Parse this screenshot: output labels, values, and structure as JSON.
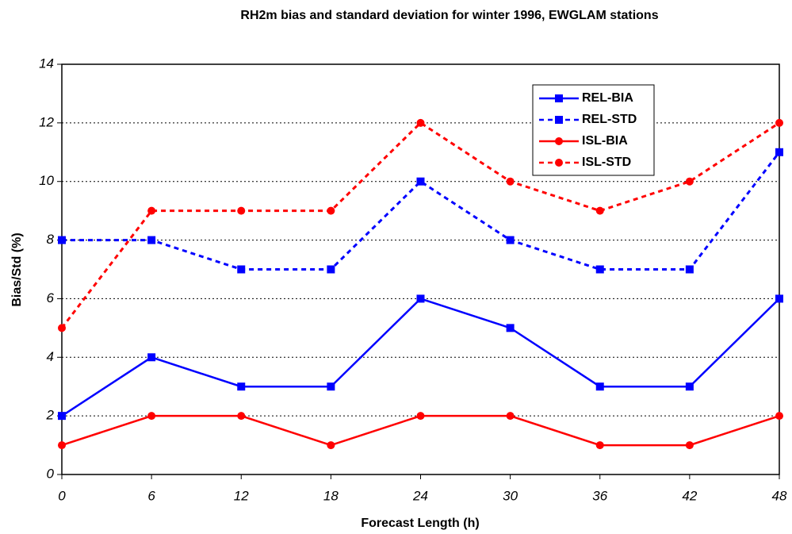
{
  "chart_data": {
    "type": "line",
    "title": "RH2m bias and standard deviation for winter 1996, EWGLAM stations",
    "x_label": "Forecast Length (h)",
    "y_label": "Bias/Std (%)",
    "x": [
      0,
      6,
      12,
      18,
      24,
      30,
      36,
      42,
      48
    ],
    "series": [
      {
        "name": "REL-BIA",
        "color": "#0000ff",
        "dash": false,
        "marker": "square",
        "values": [
          2,
          4,
          3,
          3,
          6,
          5,
          3,
          3,
          6
        ]
      },
      {
        "name": "REL-STD",
        "color": "#0000ff",
        "dash": true,
        "marker": "square",
        "values": [
          8,
          8,
          7,
          7,
          10,
          8,
          7,
          7,
          11
        ]
      },
      {
        "name": "ISL-BIA",
        "color": "#ff0000",
        "dash": false,
        "marker": "circle",
        "values": [
          1,
          2,
          2,
          1,
          2,
          2,
          1,
          1,
          2
        ]
      },
      {
        "name": "ISL-STD",
        "color": "#ff0000",
        "dash": true,
        "marker": "circle",
        "values": [
          5,
          9,
          9,
          9,
          12,
          10,
          9,
          10,
          12
        ]
      }
    ],
    "xlim": [
      0,
      48
    ],
    "xticks": [
      0,
      6,
      12,
      18,
      24,
      30,
      36,
      42,
      48
    ],
    "ylim": [
      0,
      14
    ],
    "yticks": [
      0,
      2,
      4,
      6,
      8,
      10,
      12,
      14
    ],
    "grid": true,
    "legend": "upper right"
  }
}
